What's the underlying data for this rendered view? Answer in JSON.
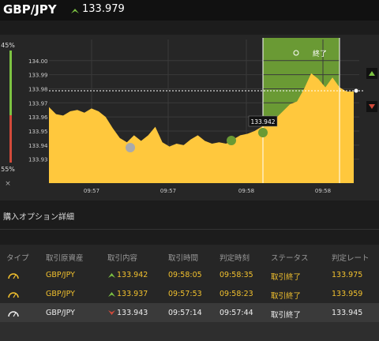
{
  "header": {
    "pair": "GBP/JPY",
    "price": "133.979"
  },
  "sidebar": {
    "top": "45%",
    "bottom": "55%",
    "close": "×"
  },
  "chart": {
    "type": "area",
    "color": "#ffc83d",
    "values": [
      133.967,
      133.962,
      133.961,
      133.964,
      133.965,
      133.963,
      133.966,
      133.964,
      133.96,
      133.952,
      133.945,
      133.942,
      133.947,
      133.943,
      133.947,
      133.953,
      133.942,
      133.939,
      133.941,
      133.94,
      133.944,
      133.947,
      133.943,
      133.941,
      133.942,
      133.941,
      133.944,
      133.947,
      133.948,
      133.95,
      133.953,
      133.956,
      133.959,
      133.964,
      133.969,
      133.971,
      133.98,
      133.991,
      133.987,
      133.981,
      133.988,
      133.981,
      133.978,
      133.978
    ],
    "ylim": [
      133.913,
      134.015
    ],
    "yticks": [
      {
        "value": 133.93,
        "label": "133.93"
      },
      {
        "value": 133.94,
        "label": "133.94"
      },
      {
        "value": 133.95,
        "label": "133.95"
      },
      {
        "value": 133.96,
        "label": "133.96"
      },
      {
        "value": 133.97,
        "label": "133.97"
      },
      {
        "value": 133.98,
        "label": "133.98"
      },
      {
        "value": 133.99,
        "label": "133.99"
      },
      {
        "value": 134.0,
        "label": "134.00"
      }
    ],
    "xlabels": [
      "09:57",
      "09:57",
      "09:58",
      "09:58"
    ],
    "annotation": "133.942",
    "end_label": "終了"
  },
  "section_title": "購入オプション詳細",
  "table": {
    "columns": [
      "タイプ",
      "取引原資産",
      "取引内容",
      "取引時間",
      "判定時刻",
      "ステータス",
      "判定レート"
    ],
    "rows": [
      {
        "direction": "up",
        "cells": [
          "GBP/JPY",
          "133.942",
          "09:58:05",
          "09:58:35",
          "取引終了",
          "133.975"
        ]
      },
      {
        "direction": "up",
        "cells": [
          "GBP/JPY",
          "133.937",
          "09:57:53",
          "09:58:23",
          "取引終了",
          "133.959"
        ]
      },
      {
        "direction": "down",
        "cells": [
          "GBP/JPY",
          "133.943",
          "09:57:14",
          "09:57:44",
          "取引終了",
          "133.945"
        ]
      }
    ]
  }
}
